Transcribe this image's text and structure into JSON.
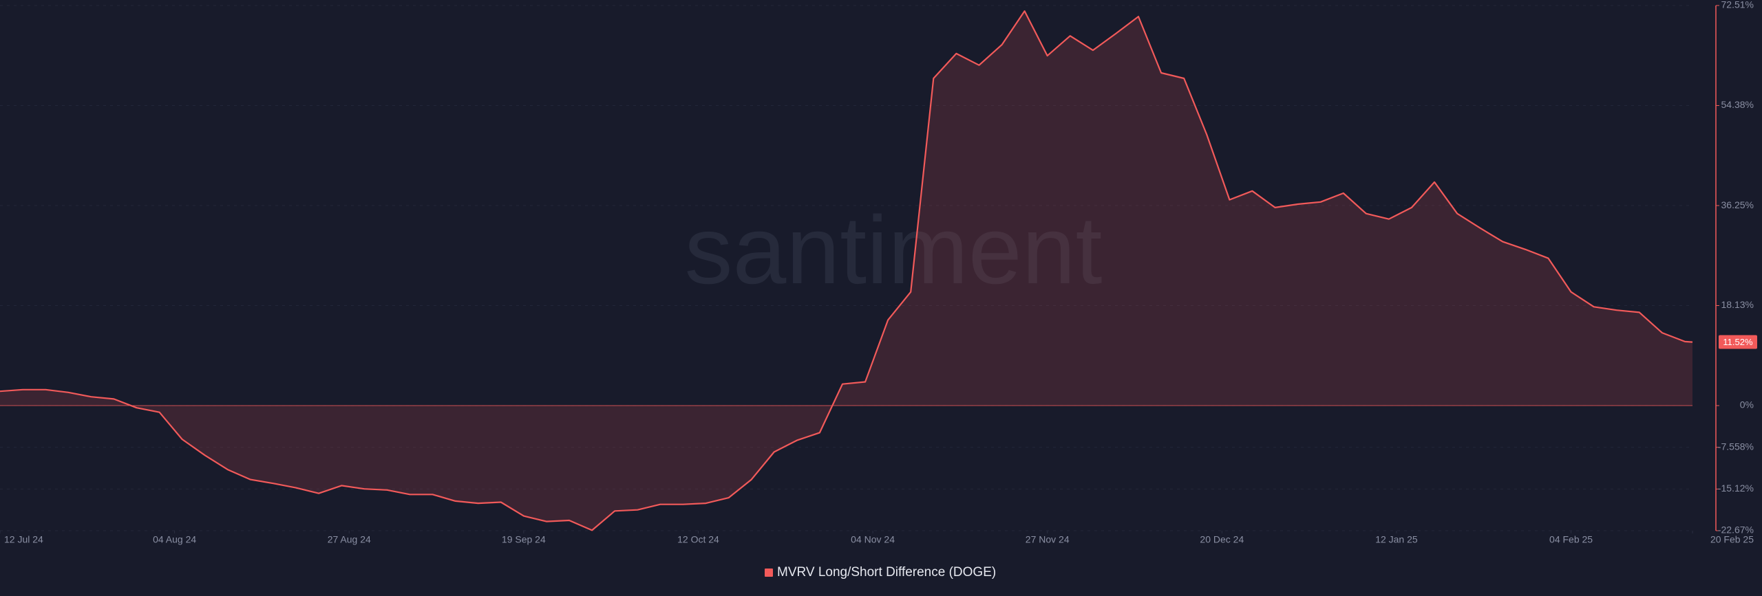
{
  "chart_data": {
    "type": "area-line",
    "watermark": "santiment",
    "x": [
      "2024-07-12",
      "2024-07-15",
      "2024-07-18",
      "2024-07-21",
      "2024-07-24",
      "2024-07-27",
      "2024-07-30",
      "2024-08-02",
      "2024-08-05",
      "2024-08-08",
      "2024-08-11",
      "2024-08-14",
      "2024-08-17",
      "2024-08-20",
      "2024-08-23",
      "2024-08-26",
      "2024-08-29",
      "2024-09-01",
      "2024-09-04",
      "2024-09-07",
      "2024-09-10",
      "2024-09-13",
      "2024-09-16",
      "2024-09-19",
      "2024-09-22",
      "2024-09-25",
      "2024-09-28",
      "2024-10-01",
      "2024-10-04",
      "2024-10-07",
      "2024-10-10",
      "2024-10-13",
      "2024-10-16",
      "2024-10-19",
      "2024-10-22",
      "2024-10-25",
      "2024-10-28",
      "2024-10-31",
      "2024-11-03",
      "2024-11-06",
      "2024-11-09",
      "2024-11-12",
      "2024-11-15",
      "2024-11-18",
      "2024-11-21",
      "2024-11-24",
      "2024-11-27",
      "2024-11-30",
      "2024-12-03",
      "2024-12-06",
      "2024-12-09",
      "2024-12-12",
      "2024-12-15",
      "2024-12-18",
      "2024-12-21",
      "2024-12-24",
      "2024-12-27",
      "2024-12-30",
      "2025-01-02",
      "2025-01-05",
      "2025-01-08",
      "2025-01-11",
      "2025-01-14",
      "2025-01-17",
      "2025-01-20",
      "2025-01-23",
      "2025-01-26",
      "2025-01-29",
      "2025-02-01",
      "2025-02-04",
      "2025-02-07",
      "2025-02-10",
      "2025-02-13",
      "2025-02-16",
      "2025-02-19",
      "2025-02-20"
    ],
    "series": [
      {
        "name": "MVRV Long/Short Difference (DOGE)",
        "color": "#f25a5a",
        "values": [
          2.6,
          2.9,
          2.9,
          2.4,
          1.6,
          1.2,
          -0.4,
          -1.2,
          -6.1,
          -9.0,
          -11.6,
          -13.4,
          -14.1,
          -14.9,
          -15.9,
          -14.5,
          -15.1,
          -15.3,
          -16.1,
          -16.1,
          -17.3,
          -17.7,
          -17.5,
          -20.0,
          -21.0,
          -20.8,
          -22.6,
          -19.1,
          -18.9,
          -17.9,
          -17.9,
          -17.7,
          -16.7,
          -13.4,
          -8.4,
          -6.3,
          -4.9,
          3.9,
          4.3,
          15.5,
          20.6,
          59.3,
          63.8,
          61.7,
          65.4,
          71.5,
          63.4,
          67.0,
          64.4,
          67.4,
          70.5,
          60.3,
          59.3,
          49.1,
          37.3,
          38.9,
          35.9,
          36.5,
          36.9,
          38.5,
          34.8,
          33.8,
          35.9,
          40.5,
          34.8,
          32.2,
          29.7,
          28.3,
          26.7,
          20.6,
          17.9,
          17.3,
          16.9,
          13.2,
          11.6,
          11.52
        ]
      }
    ],
    "current_value_label": "11.52%",
    "xlim": [
      "2024-07-12",
      "2025-02-20"
    ],
    "xticks": [
      {
        "value": "2024-07-12",
        "label": "12 Jul 24"
      },
      {
        "value": "2024-08-04",
        "label": "04 Aug 24"
      },
      {
        "value": "2024-08-27",
        "label": "27 Aug 24"
      },
      {
        "value": "2024-09-19",
        "label": "19 Sep 24"
      },
      {
        "value": "2024-10-12",
        "label": "12 Oct 24"
      },
      {
        "value": "2024-11-04",
        "label": "04 Nov 24"
      },
      {
        "value": "2024-11-27",
        "label": "27 Nov 24"
      },
      {
        "value": "2024-12-20",
        "label": "20 Dec 24"
      },
      {
        "value": "2025-01-12",
        "label": "12 Jan 25"
      },
      {
        "value": "2025-02-04",
        "label": "04 Feb 25"
      },
      {
        "value": "2025-02-20",
        "label": "20 Feb 25"
      }
    ],
    "ylim": [
      -22.67,
      72.51
    ],
    "yticks": [
      {
        "value": 72.51,
        "label": "72.51%"
      },
      {
        "value": 54.38,
        "label": "54.38%"
      },
      {
        "value": 36.25,
        "label": "36.25%"
      },
      {
        "value": 18.13,
        "label": "18.13%"
      },
      {
        "value": 0,
        "label": "0%"
      },
      {
        "value": -7.558,
        "label": "-7.558%"
      },
      {
        "value": -15.12,
        "label": "-15.12%"
      },
      {
        "value": -22.67,
        "label": "-22.67%"
      }
    ],
    "grid": true
  }
}
